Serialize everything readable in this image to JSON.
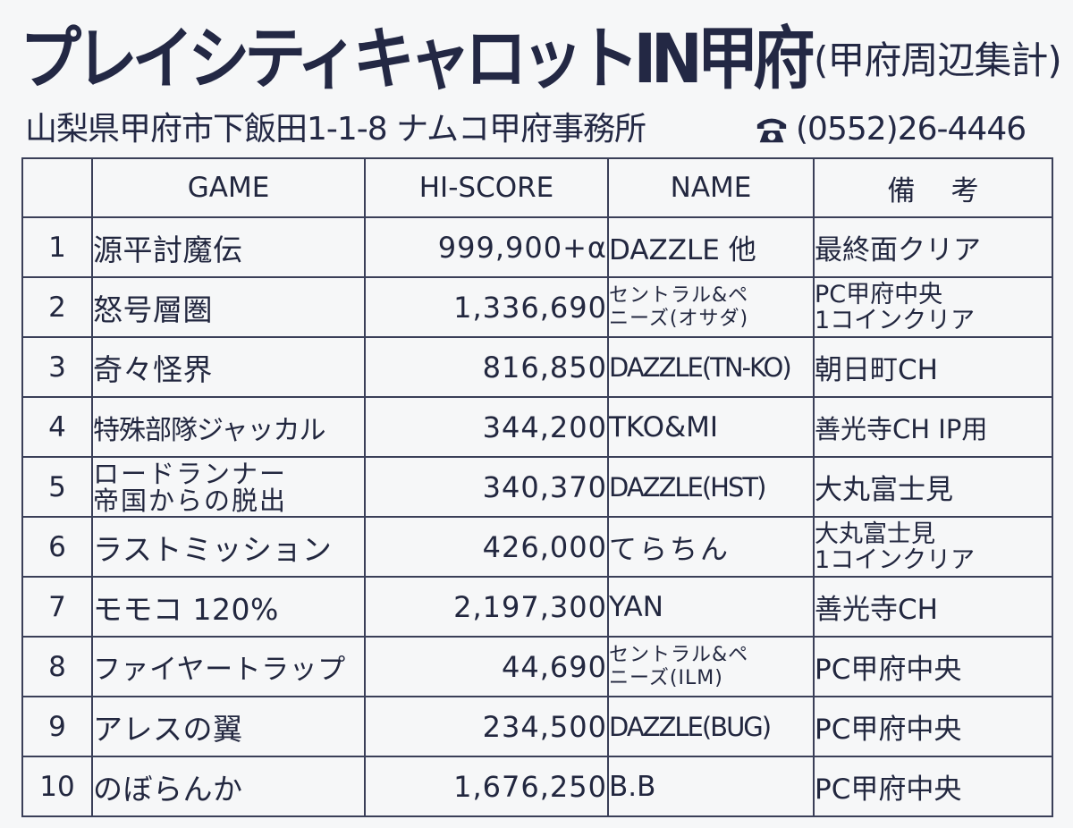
{
  "header": {
    "title": "プレイシティキャロットIN甲府",
    "subtitle": "(甲府周辺集計)",
    "address": "山梨県甲府市下飯田1-1-8 ナムコ甲府事務所",
    "phone": "(0552)26-4446",
    "phone_icon": "telephone-icon"
  },
  "table": {
    "headers": {
      "rank": "",
      "game": "GAME",
      "score": "HI-SCORE",
      "name": "NAME",
      "remarks": "備考"
    },
    "rows": [
      {
        "rank": "1",
        "game": [
          "源平討魔伝"
        ],
        "score": "999,900+α",
        "name": [
          "DAZZLE 他"
        ],
        "remarks": [
          "最終面クリア"
        ]
      },
      {
        "rank": "2",
        "game": [
          "怒号層圏"
        ],
        "score": "1,336,690",
        "name": [
          "セントラル&ペ",
          "ニーズ(オサダ)"
        ],
        "remarks": [
          "PC甲府中央",
          "1コインクリア"
        ]
      },
      {
        "rank": "3",
        "game": [
          "奇々怪界"
        ],
        "score": "816,850",
        "name": [
          "DAZZLE(TN-KO)"
        ],
        "remarks": [
          "朝日町CH"
        ]
      },
      {
        "rank": "4",
        "game": [
          "特殊部隊ジャッカル"
        ],
        "score": "344,200",
        "name": [
          "TKO&MI"
        ],
        "remarks": [
          "善光寺CH IP用"
        ]
      },
      {
        "rank": "5",
        "game": [
          "ロードランナー",
          "帝国からの脱出"
        ],
        "score": "340,370",
        "name": [
          "DAZZLE(HST)"
        ],
        "remarks": [
          "大丸富士見"
        ]
      },
      {
        "rank": "6",
        "game": [
          "ラストミッション"
        ],
        "score": "426,000",
        "name": [
          "てらちん"
        ],
        "remarks": [
          "大丸富士見",
          "1コインクリア"
        ]
      },
      {
        "rank": "7",
        "game": [
          "モモコ 120%"
        ],
        "score": "2,197,300",
        "name": [
          "YAN"
        ],
        "remarks": [
          "善光寺CH"
        ]
      },
      {
        "rank": "8",
        "game": [
          "ファイヤートラップ"
        ],
        "score": "44,690",
        "name": [
          "セントラル&ペ",
          "ニーズ(ILM)"
        ],
        "remarks": [
          "PC甲府中央"
        ]
      },
      {
        "rank": "9",
        "game": [
          "アレスの翼"
        ],
        "score": "234,500",
        "name": [
          "DAZZLE(BUG)"
        ],
        "remarks": [
          "PC甲府中央"
        ]
      },
      {
        "rank": "10",
        "game": [
          "のぼらんか"
        ],
        "score": "1,676,250",
        "name": [
          "B.B"
        ],
        "remarks": [
          "PC甲府中央"
        ]
      }
    ]
  }
}
